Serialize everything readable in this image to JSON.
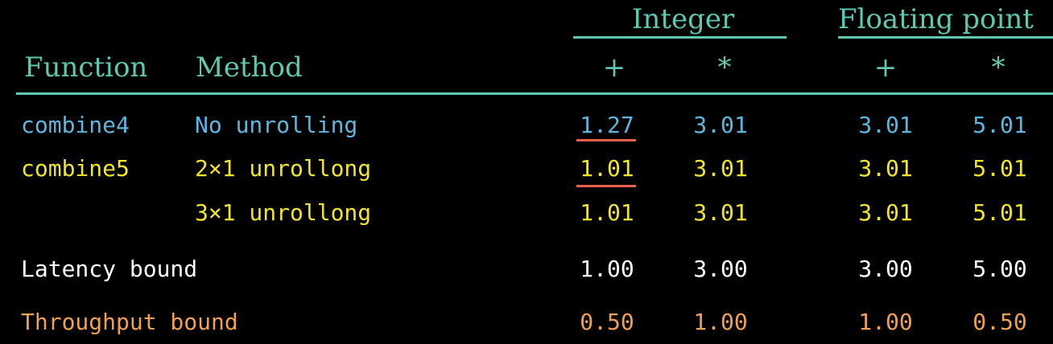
{
  "header": {
    "integer": "Integer",
    "floating_point": "Floating point",
    "function": "Function",
    "method": "Method",
    "int_add": "+",
    "int_mul": "*",
    "fp_add": "+",
    "fp_mul": "*"
  },
  "rows": [
    {
      "function": "combine4",
      "method": "No unrolling",
      "values": [
        "1.27",
        "3.01",
        "3.01",
        "5.01"
      ]
    },
    {
      "function": "combine5",
      "method": "2×1 unrollong",
      "values": [
        "1.01",
        "3.01",
        "3.01",
        "5.01"
      ]
    },
    {
      "function": "",
      "method": "3×1 unrollong",
      "values": [
        "1.01",
        "3.01",
        "3.01",
        "5.01"
      ]
    }
  ],
  "bounds": [
    {
      "label": "Latency bound",
      "values": [
        "1.00",
        "3.00",
        "3.00",
        "5.00"
      ]
    },
    {
      "label": "Throughput bound",
      "values": [
        "0.50",
        "1.00",
        "1.00",
        "0.50"
      ]
    }
  ],
  "colors": {
    "header": "#5fc8b0",
    "combine4": "#5bb6e0",
    "combine5": "#f2e52a",
    "latency": "#ffffff",
    "throughput": "#f0a050",
    "highlight": "#e8604a",
    "background": "#000000"
  }
}
